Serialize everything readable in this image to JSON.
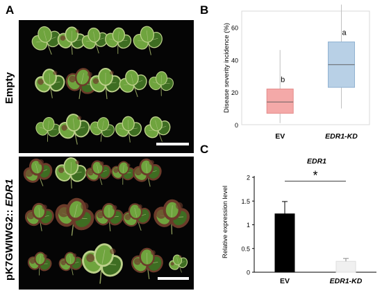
{
  "panels": {
    "a": {
      "letter": "A",
      "top_label": "Empty",
      "bottom_label_prefix": "pK7GWIWG2:: ",
      "bottom_label_gene": "EDR1"
    },
    "b": {
      "letter": "B"
    },
    "c": {
      "letter": "C"
    }
  },
  "colors": {
    "ev_box": "#f4a9a8",
    "ev_box_edge": "#e48c8b",
    "edr_box": "#b8d0e6",
    "edr_box_edge": "#8fb1d1",
    "ev_bar": "#000000",
    "edr_bar": "#f0f0f0",
    "leaf_light": "#6fa43e",
    "leaf_dark": "#3e6d22",
    "leaf_lesion": "#6b3b2a"
  },
  "chart_data": [
    {
      "type": "box",
      "ylabel": "Disease severity incidence (%)",
      "ylim": [
        0,
        70
      ],
      "yticks": [
        0,
        20,
        40,
        60
      ],
      "categories": [
        "EV",
        "EDR1-KD"
      ],
      "boxes": [
        {
          "name": "EV",
          "min": 1,
          "q1": 7,
          "median": 14,
          "q3": 22,
          "max": 46,
          "letter": "b"
        },
        {
          "name": "EDR1-KD",
          "min": 10,
          "q1": 23,
          "median": 37,
          "q3": 51,
          "max": 74,
          "letter": "a"
        }
      ]
    },
    {
      "type": "bar",
      "title": "EDR1",
      "ylabel": "Relative expression level",
      "ylim": [
        0,
        2
      ],
      "yticks": [
        "0",
        "0.5",
        "1",
        "1.5",
        "2"
      ],
      "categories": [
        "EV",
        "EDR1-KD"
      ],
      "values": [
        1.23,
        0.23
      ],
      "errors": [
        0.26,
        0.06
      ],
      "significance": "*"
    }
  ]
}
